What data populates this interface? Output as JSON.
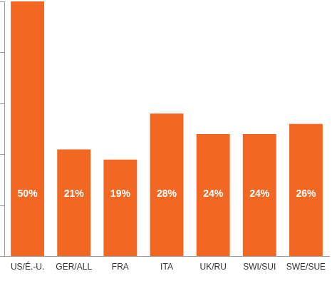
{
  "chart_data": {
    "type": "bar",
    "categories": [
      "US/É.-U.",
      "GER/ALL",
      "FRA",
      "ITA",
      "UK/RU",
      "SWI/SUI",
      "SWE/SUE"
    ],
    "values": [
      50,
      21,
      19,
      28,
      24,
      24,
      26
    ],
    "value_labels": [
      "50%",
      "21%",
      "19%",
      "28%",
      "24%",
      "24%",
      "26%"
    ],
    "color": "#f26722",
    "ylim": [
      0,
      50
    ],
    "yticks": [
      0,
      10,
      20,
      30,
      40,
      50
    ],
    "grid": false,
    "data_labels": true,
    "tick_labels": "x"
  }
}
